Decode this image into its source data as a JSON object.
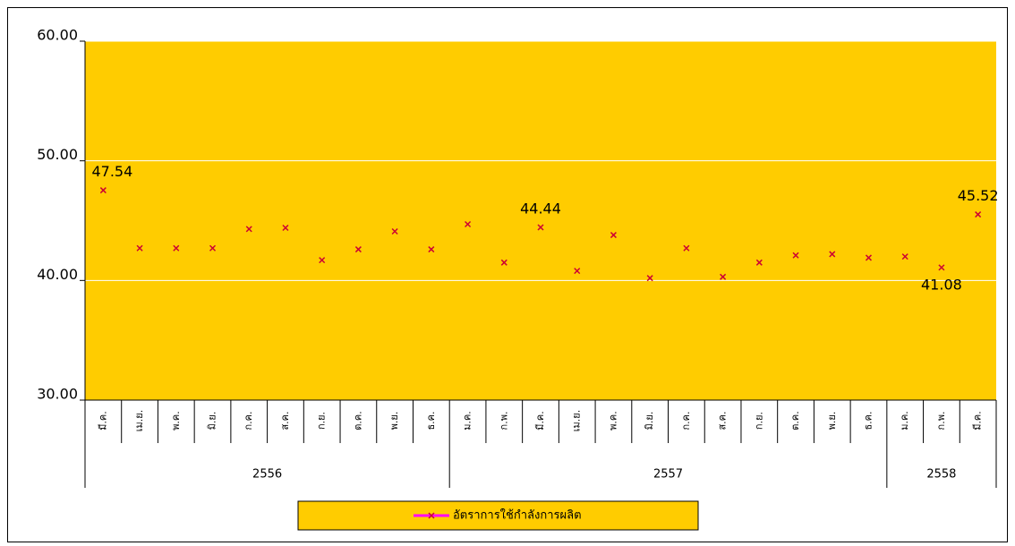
{
  "chart_data": {
    "type": "line",
    "categories": [
      "มี.ค.",
      "เม.ย.",
      "พ.ค.",
      "มิ.ย.",
      "ก.ค.",
      "ส.ค.",
      "ก.ย.",
      "ต.ค.",
      "พ.ย.",
      "ธ.ค.",
      "ม.ค.",
      "ก.พ.",
      "มี.ค.",
      "เม.ย.",
      "พ.ค.",
      "มิ.ย.",
      "ก.ค.",
      "ส.ค.",
      "ก.ย.",
      "ต.ค.",
      "พ.ย.",
      "ธ.ค.",
      "ม.ค.",
      "ก.พ.",
      "มี.ค."
    ],
    "groups": [
      {
        "label": "2556",
        "count": 10
      },
      {
        "label": "2557",
        "count": 12
      },
      {
        "label": "2558",
        "count": 3
      }
    ],
    "series": [
      {
        "name": "อัตราการใช้กำลังการผลิต",
        "color": "#ff00ff",
        "marker_color": "#cc0033",
        "values": [
          47.54,
          42.7,
          42.7,
          42.7,
          44.3,
          44.4,
          41.7,
          42.6,
          44.1,
          42.6,
          44.7,
          41.5,
          44.44,
          40.8,
          43.8,
          40.2,
          42.7,
          40.3,
          41.5,
          42.1,
          42.2,
          41.9,
          42.0,
          41.08,
          45.52
        ],
        "value_labels": [
          "47.54",
          null,
          null,
          null,
          null,
          null,
          null,
          null,
          null,
          null,
          null,
          null,
          "44.44",
          null,
          null,
          null,
          null,
          null,
          null,
          null,
          null,
          null,
          null,
          "41.08",
          "45.52"
        ]
      }
    ],
    "ylim": [
      30,
      60
    ],
    "yticks": [
      {
        "value": 30,
        "label": "30.00"
      },
      {
        "value": 40,
        "label": "40.00"
      },
      {
        "value": 50,
        "label": "50.00"
      },
      {
        "value": 60,
        "label": "60.00"
      }
    ],
    "grid": true,
    "plot_background": "#ffcc00",
    "legend": "bottom"
  }
}
